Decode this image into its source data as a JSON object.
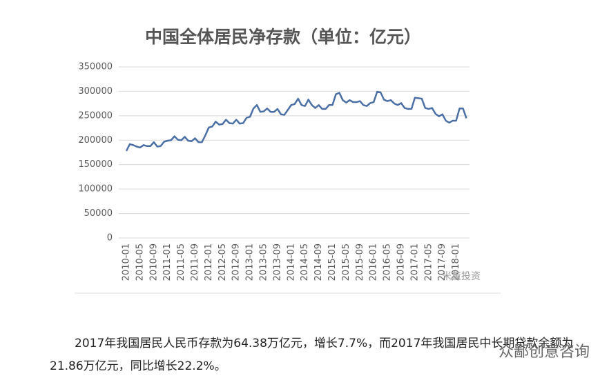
{
  "chart_data": {
    "type": "line",
    "title": "中国全体居民净存款（单位：亿元）",
    "categories": [
      "2010-01",
      null,
      null,
      null,
      "2010-05",
      null,
      null,
      null,
      "2010-09",
      null,
      null,
      null,
      "2011-01",
      null,
      null,
      null,
      "2011-05",
      null,
      null,
      null,
      "2011-09",
      null,
      null,
      null,
      "2012-01",
      null,
      null,
      null,
      "2012-05",
      null,
      null,
      null,
      "2012-09",
      null,
      null,
      null,
      "2013-01",
      null,
      null,
      null,
      "2013-05",
      null,
      null,
      null,
      "2013-09",
      null,
      null,
      null,
      "2014-01",
      null,
      null,
      null,
      "2014-05",
      null,
      null,
      null,
      "2014-09",
      null,
      null,
      null,
      "2015-01",
      null,
      null,
      null,
      "2015-05",
      null,
      null,
      null,
      "2015-09",
      null,
      null,
      null,
      "2016-01",
      null,
      null,
      null,
      "2016-05",
      null,
      null,
      null,
      "2016-09",
      null,
      null,
      null,
      "2017-01",
      null,
      null,
      null,
      "2017-05",
      null,
      null,
      null,
      "2017-09",
      null,
      null,
      null,
      "2018-01",
      null,
      null,
      null
    ],
    "values": [
      178000,
      192000,
      190000,
      187000,
      185000,
      190000,
      188000,
      188000,
      196000,
      187000,
      188000,
      197000,
      199000,
      200000,
      208000,
      201000,
      200000,
      207000,
      199000,
      198000,
      204000,
      196000,
      196000,
      210000,
      226000,
      228000,
      238000,
      232000,
      233000,
      242000,
      235000,
      234000,
      242000,
      234000,
      235000,
      246000,
      248000,
      265000,
      272000,
      258000,
      259000,
      265000,
      258000,
      258000,
      264000,
      253000,
      252000,
      262000,
      272000,
      274000,
      285000,
      272000,
      270000,
      283000,
      272000,
      266000,
      272000,
      264000,
      264000,
      272000,
      272000,
      294000,
      297000,
      282000,
      277000,
      282000,
      278000,
      278000,
      280000,
      272000,
      270000,
      276000,
      278000,
      299000,
      298000,
      283000,
      280000,
      282000,
      275000,
      272000,
      276000,
      266000,
      264000,
      264000,
      287000,
      286000,
      285000,
      266000,
      264000,
      266000,
      254000,
      249000,
      253000,
      240000,
      236000,
      240000,
      240000,
      265000,
      265000,
      245000
    ],
    "color": "#4a6fa5",
    "ylim": [
      0,
      350000
    ],
    "yticks": [
      0,
      50000,
      100000,
      150000,
      200000,
      250000,
      300000,
      350000
    ],
    "grid": true
  },
  "watermark": "米董投资",
  "paragraph": "2017年我国居民人民币存款为64.38万亿元，增长7.7%，而2017年我国居民中长期贷款余额为21.86万亿元，同比增长22.2%。",
  "footer_watermark": "众鄙创意咨询"
}
